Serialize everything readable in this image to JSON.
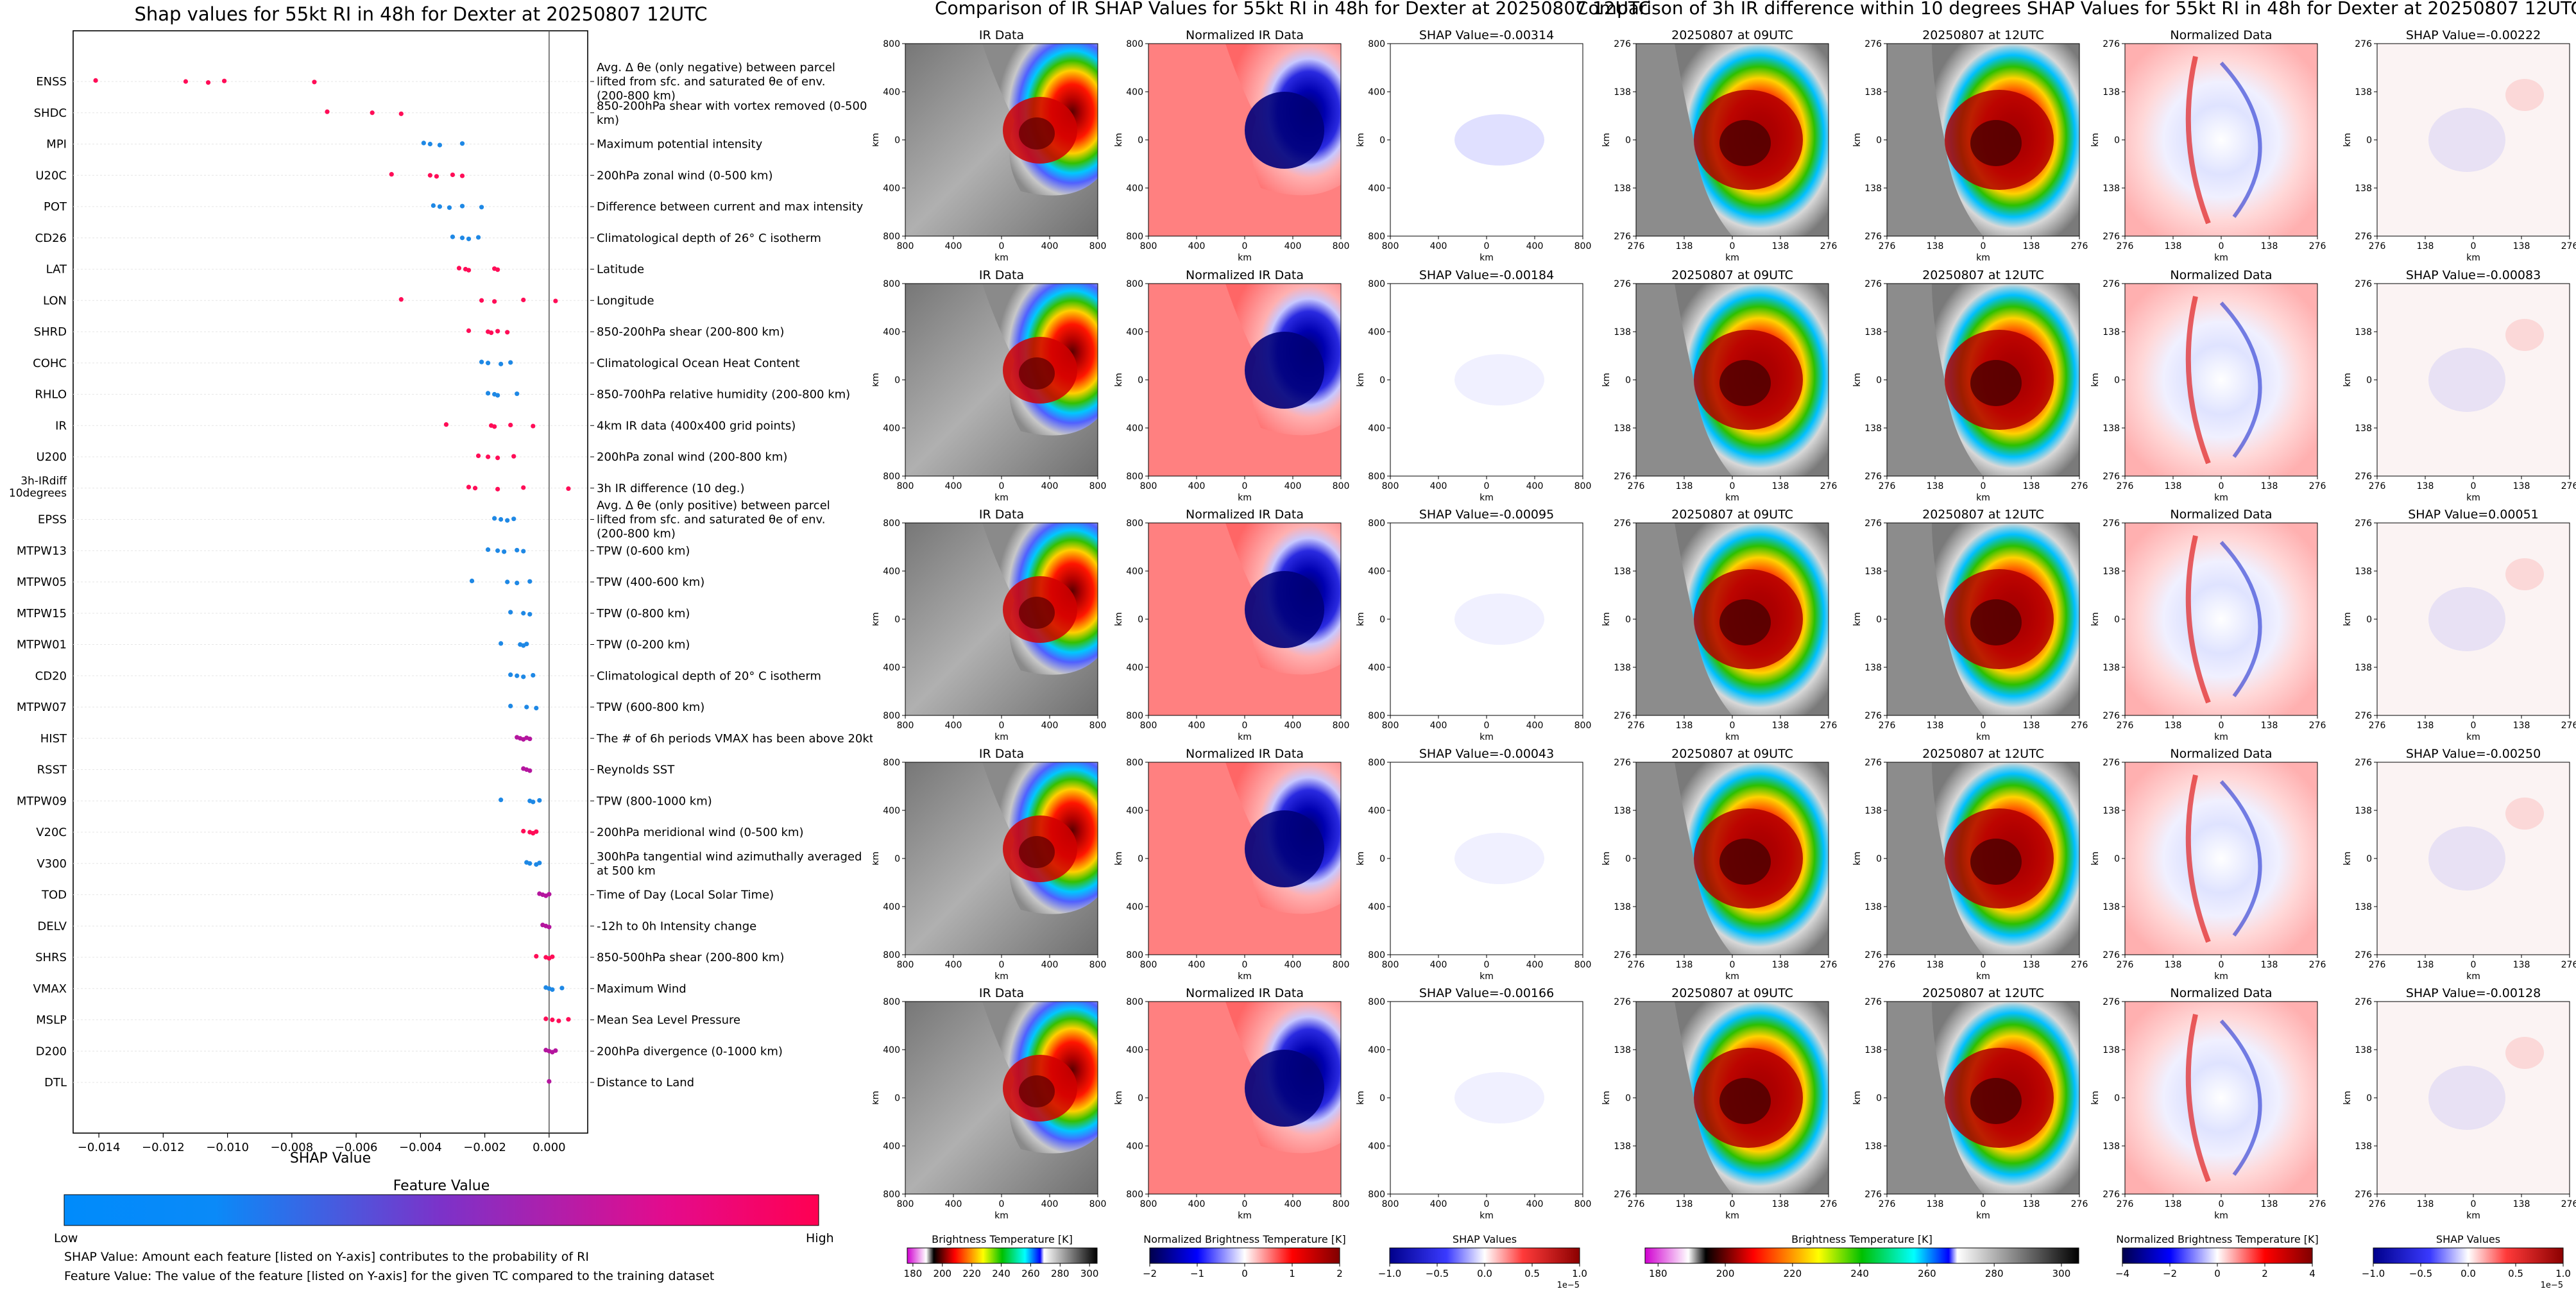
{
  "shap_panel": {
    "title": "Shap values for 55kt RI in 48h for Dexter at 20250807 12UTC",
    "xlabel": "SHAP Value",
    "colorbar_title": "Feature Value",
    "colorbar_low": "Low",
    "colorbar_high": "High",
    "footnote_1": "SHAP Value: Amount each feature [listed on Y-axis] contributes to the probability of RI",
    "footnote_2": "Feature Value: The value of the feature [listed on Y-axis] for the given TC compared to the training dataset"
  },
  "ir_panel": {
    "title": "Comparison of IR SHAP Values for 55kt RI in 48h for Dexter at 20250807 12UTC",
    "col_titles": [
      "IR Data",
      "Normalized IR Data"
    ],
    "shap_titles": [
      "SHAP Value=-0.00314",
      "SHAP Value=-0.00184",
      "SHAP Value=-0.00095",
      "SHAP Value=-0.00043",
      "SHAP Value=-0.00166"
    ],
    "ticks": [
      "800",
      "400",
      "0",
      "400",
      "800"
    ],
    "axis_label": "km",
    "cb1_label": "Brightness Temperature [K]",
    "cb1_ticks": [
      "180",
      "200",
      "220",
      "240",
      "260",
      "280",
      "300"
    ],
    "cb2_label": "Normalized Brightness Temperature [K]",
    "cb2_ticks": [
      "−2",
      "−1",
      "0",
      "1",
      "2"
    ],
    "cb3_label": "SHAP Values",
    "cb3_ticks": [
      "−1.0",
      "−0.5",
      "0.0",
      "0.5",
      "1.0"
    ],
    "cb3_exp": "1e−5"
  },
  "diff_panel": {
    "title": "Comparison of 3h IR difference within 10 degrees SHAP Values for 55kt RI in 48h for Dexter at 20250807 12UTC",
    "col_titles": [
      "20250807 at 09UTC",
      "20250807 at 12UTC",
      "Normalized Data"
    ],
    "shap_titles": [
      "SHAP Value=-0.00222",
      "SHAP Value=-0.00083",
      "SHAP Value=0.00051",
      "SHAP Value=-0.00250",
      "SHAP Value=-0.00128"
    ],
    "ticks": [
      "276",
      "138",
      "0",
      "138",
      "276"
    ],
    "axis_label": "km",
    "cb1_label": "Brightness Temperature [K]",
    "cb1_ticks": [
      "180",
      "200",
      "220",
      "240",
      "260",
      "280",
      "300"
    ],
    "cb2_label": "Normalized Brightness Temperature [K]",
    "cb2_ticks": [
      "−4",
      "−2",
      "0",
      "2",
      "4"
    ],
    "cb3_label": "SHAP Values",
    "cb3_ticks": [
      "−1.0",
      "−0.5",
      "0.0",
      "0.5",
      "1.0"
    ],
    "cb3_exp": "1e−5"
  },
  "chart_data": [
    {
      "type": "scatter",
      "title": "Shap values for 55kt RI in 48h for Dexter at 20250807 12UTC",
      "xlabel": "SHAP Value",
      "ylabel": "",
      "xlim": [
        -0.0148,
        0.0012
      ],
      "xticks": [
        -0.014,
        -0.012,
        -0.01,
        -0.008,
        -0.006,
        -0.004,
        -0.002,
        0.0
      ],
      "xtick_labels": [
        "−0.014",
        "−0.012",
        "−0.010",
        "−0.008",
        "−0.006",
        "−0.004",
        "−0.002",
        "0.000"
      ],
      "legend": "colorbar Feature Value Low (blue) to High (pink)",
      "features": [
        {
          "name": "ENSS",
          "desc": "Avg. Δ θe (only negative) between parcel lifted from sfc. and saturated θe of env. (200-800 km)",
          "values": [
            -0.0141,
            -0.0113,
            -0.0106,
            -0.0101,
            -0.0073
          ],
          "level": "high"
        },
        {
          "name": "SHDC",
          "desc": "850-200hPa shear with vortex removed (0-500 km)",
          "values": [
            -0.0069,
            -0.0055,
            -0.0046
          ],
          "level": "high"
        },
        {
          "name": "MPI",
          "desc": "Maximum potential intensity",
          "values": [
            -0.0039,
            -0.0037,
            -0.0034,
            -0.0027
          ],
          "level": "low"
        },
        {
          "name": "U20C",
          "desc": "200hPa zonal wind (0-500 km)",
          "values": [
            -0.0049,
            -0.0037,
            -0.0035,
            -0.003,
            -0.0027
          ],
          "level": "high"
        },
        {
          "name": "POT",
          "desc": "Difference between current and max intensity",
          "values": [
            -0.0036,
            -0.0034,
            -0.0031,
            -0.0027,
            -0.0021
          ],
          "level": "low"
        },
        {
          "name": "CD26",
          "desc": "Climatological depth of 26° C isotherm",
          "values": [
            -0.003,
            -0.0027,
            -0.0025,
            -0.0022
          ],
          "level": "low"
        },
        {
          "name": "LAT",
          "desc": "Latitude",
          "values": [
            -0.0028,
            -0.0026,
            -0.0025,
            -0.0017,
            -0.0016
          ],
          "level": "high"
        },
        {
          "name": "LON",
          "desc": "Longitude",
          "values": [
            -0.0046,
            -0.0021,
            -0.0017,
            -0.0008,
            0.0002
          ],
          "level": "high"
        },
        {
          "name": "SHRD",
          "desc": "850-200hPa shear (200-800 km)",
          "values": [
            -0.0025,
            -0.0019,
            -0.0018,
            -0.0016,
            -0.0013
          ],
          "level": "high"
        },
        {
          "name": "COHC",
          "desc": "Climatological Ocean Heat Content",
          "values": [
            -0.0021,
            -0.0019,
            -0.0015,
            -0.0012
          ],
          "level": "low"
        },
        {
          "name": "RHLO",
          "desc": "850-700hPa relative humidity (200-800 km)",
          "values": [
            -0.0019,
            -0.0017,
            -0.0016,
            -0.001
          ],
          "level": "low"
        },
        {
          "name": "IR",
          "desc": "4km IR data (400x400 grid points)",
          "values": [
            -0.0032,
            -0.0018,
            -0.0017,
            -0.0012,
            -0.0005
          ],
          "level": "high"
        },
        {
          "name": "U200",
          "desc": "200hPa zonal wind (200-800 km)",
          "values": [
            -0.0022,
            -0.0019,
            -0.0016,
            -0.0011
          ],
          "level": "high"
        },
        {
          "name": "3h-IRdiff 10degrees",
          "desc": "3h IR difference (10 deg.)",
          "values": [
            -0.0025,
            -0.0023,
            -0.0016,
            -0.0008,
            0.0006
          ],
          "level": "high"
        },
        {
          "name": "EPSS",
          "desc": "Avg. Δ θe (only positive) between parcel lifted from sfc. and saturated θe of env. (200-800 km)",
          "values": [
            -0.0017,
            -0.0015,
            -0.0013,
            -0.0011
          ],
          "level": "low"
        },
        {
          "name": "MTPW13",
          "desc": "TPW (0-600 km)",
          "values": [
            -0.0019,
            -0.0016,
            -0.0014,
            -0.001,
            -0.0008
          ],
          "level": "low"
        },
        {
          "name": "MTPW05",
          "desc": "TPW (400-600 km)",
          "values": [
            -0.0024,
            -0.0013,
            -0.001,
            -0.0006
          ],
          "level": "low"
        },
        {
          "name": "MTPW15",
          "desc": "TPW (0-800 km)",
          "values": [
            -0.0012,
            -0.0008,
            -0.0006
          ],
          "level": "low"
        },
        {
          "name": "MTPW01",
          "desc": "TPW (0-200 km)",
          "values": [
            -0.0015,
            -0.0009,
            -0.0008,
            -0.0007
          ],
          "level": "low"
        },
        {
          "name": "CD20",
          "desc": "Climatological depth of 20° C isotherm",
          "values": [
            -0.0012,
            -0.001,
            -0.0008,
            -0.0005
          ],
          "level": "low"
        },
        {
          "name": "MTPW07",
          "desc": "TPW (600-800 km)",
          "values": [
            -0.0012,
            -0.0007,
            -0.0004
          ],
          "level": "low"
        },
        {
          "name": "HIST",
          "desc": "The # of 6h periods VMAX has been above 20kt",
          "values": [
            -0.001,
            -0.0009,
            -0.0008,
            -0.0007,
            -0.0006
          ],
          "level": "mid"
        },
        {
          "name": "RSST",
          "desc": "Reynolds SST",
          "values": [
            -0.0008,
            -0.0007,
            -0.0006
          ],
          "level": "mid"
        },
        {
          "name": "MTPW09",
          "desc": "TPW (800-1000 km)",
          "values": [
            -0.0015,
            -0.0006,
            -0.0005,
            -0.0003
          ],
          "level": "low"
        },
        {
          "name": "V20C",
          "desc": "200hPa meridional wind (0-500 km)",
          "values": [
            -0.0008,
            -0.0006,
            -0.0005,
            -0.0004
          ],
          "level": "high"
        },
        {
          "name": "V300",
          "desc": "300hPa tangential wind azimuthally averaged at 500 km",
          "values": [
            -0.0007,
            -0.0006,
            -0.0004,
            -0.0003
          ],
          "level": "low"
        },
        {
          "name": "TOD",
          "desc": "Time of Day (Local Solar Time)",
          "values": [
            -0.0003,
            -0.0002,
            -0.0001,
            0.0
          ],
          "level": "mid"
        },
        {
          "name": "DELV",
          "desc": "-12h to 0h Intensity change",
          "values": [
            -0.0002,
            -0.0001,
            0.0
          ],
          "level": "mid"
        },
        {
          "name": "SHRS",
          "desc": "850-500hPa shear (200-800 km)",
          "values": [
            -0.0004,
            -0.0001,
            0.0,
            0.0001
          ],
          "level": "high"
        },
        {
          "name": "VMAX",
          "desc": "Maximum Wind",
          "values": [
            -0.0001,
            0.0,
            0.0001,
            0.0004
          ],
          "level": "low"
        },
        {
          "name": "MSLP",
          "desc": "Mean Sea Level Pressure",
          "values": [
            -0.0001,
            0.0001,
            0.0003,
            0.0006
          ],
          "level": "high"
        },
        {
          "name": "D200",
          "desc": "200hPa divergence (0-1000 km)",
          "values": [
            -0.0001,
            0.0,
            0.0001,
            0.0002
          ],
          "level": "mid"
        },
        {
          "name": "DTL",
          "desc": "Distance to Land",
          "values": [
            0.0
          ],
          "level": "mid"
        }
      ]
    },
    {
      "type": "heatmap",
      "title": "Comparison of IR SHAP Values for 55kt RI in 48h for Dexter at 20250807 12UTC",
      "xlabel": "km",
      "ylabel": "km",
      "xlim": [
        -800,
        800
      ],
      "ylim": [
        -800,
        800
      ],
      "columns": [
        "IR Data",
        "Normalized IR Data",
        "SHAP Value"
      ],
      "rows_shap_values": [
        -0.00314,
        -0.00184,
        -0.00095,
        -0.00043,
        -0.00166
      ]
    },
    {
      "type": "heatmap",
      "title": "Comparison of 3h IR difference within 10 degrees SHAP Values for 55kt RI in 48h for Dexter at 20250807 12UTC",
      "xlabel": "km",
      "ylabel": "km",
      "xlim": [
        -276,
        276
      ],
      "ylim": [
        -276,
        276
      ],
      "columns": [
        "20250807 at 09UTC",
        "20250807 at 12UTC",
        "Normalized Data",
        "SHAP Value"
      ],
      "rows_shap_values": [
        -0.00222,
        -0.00083,
        0.00051,
        -0.0025,
        -0.00128
      ]
    }
  ]
}
